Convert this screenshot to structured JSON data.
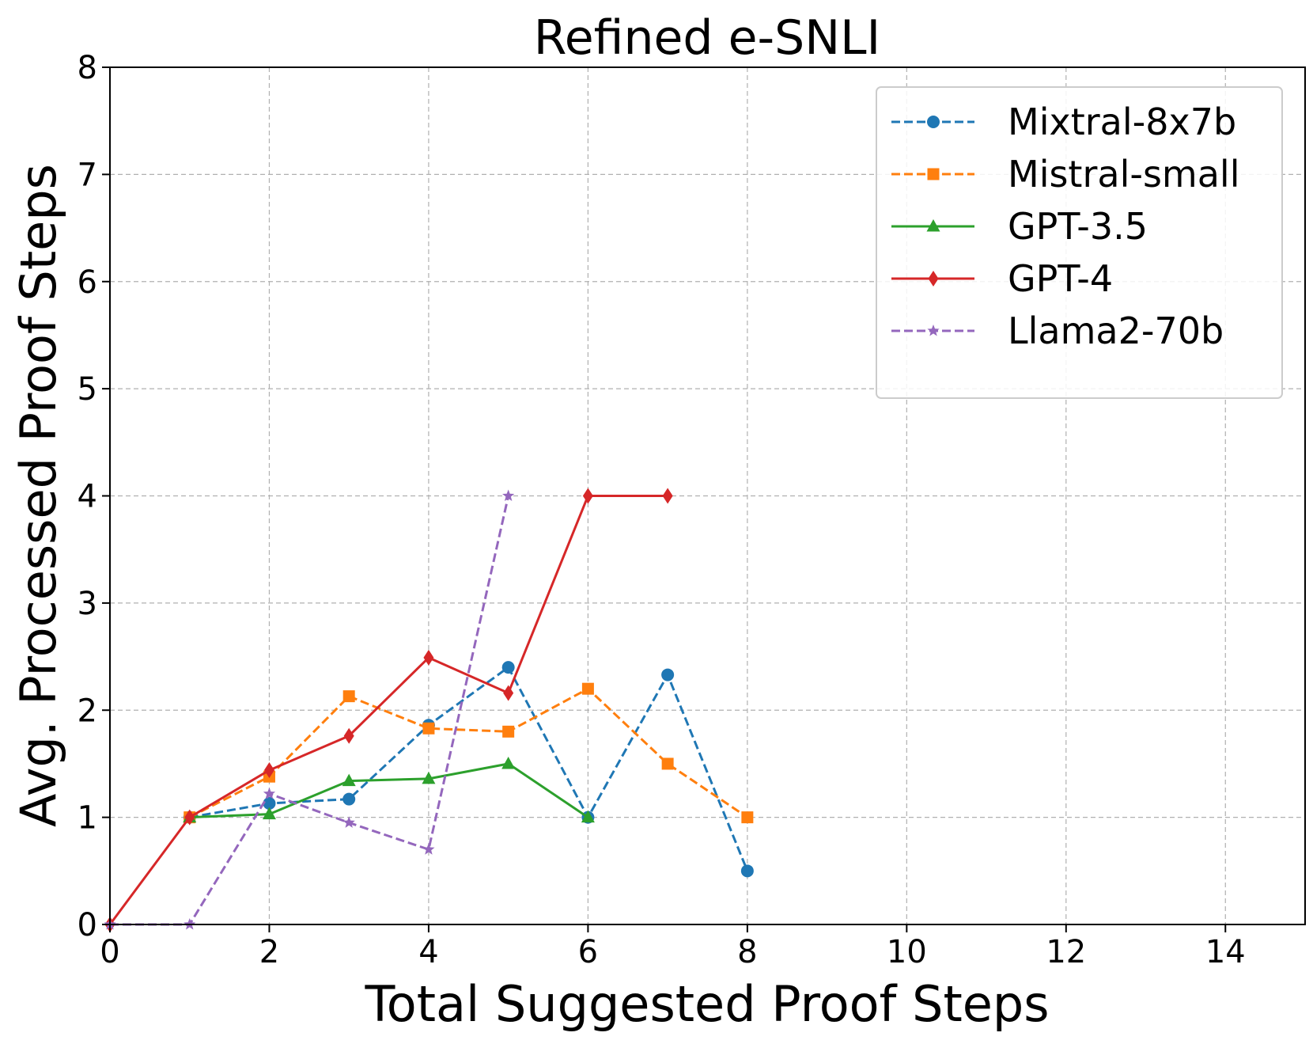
{
  "chart_data": {
    "type": "line",
    "title": "Refined e-SNLI",
    "xlabel": "Total Suggested Proof Steps",
    "ylabel": "Avg. Processed Proof Steps",
    "xlim": [
      0,
      15
    ],
    "ylim": [
      0,
      8
    ],
    "xticks": [
      0,
      2,
      4,
      6,
      8,
      10,
      12,
      14
    ],
    "yticks": [
      0,
      1,
      2,
      3,
      4,
      5,
      6,
      7,
      8
    ],
    "grid": true,
    "legend_position": "top-right",
    "series": [
      {
        "name": "Mixtral-8x7b",
        "color": "#1f77b4",
        "dash": "dashed",
        "marker": "circle",
        "x": [
          1,
          2,
          3,
          4,
          5,
          6,
          7,
          8
        ],
        "y": [
          1.0,
          1.13,
          1.17,
          1.86,
          2.4,
          1.0,
          2.33,
          0.5
        ]
      },
      {
        "name": "Mistral-small",
        "color": "#ff7f0e",
        "dash": "dashed",
        "marker": "square",
        "x": [
          1,
          2,
          3,
          4,
          5,
          6,
          7,
          8
        ],
        "y": [
          1.0,
          1.38,
          2.13,
          1.83,
          1.8,
          2.2,
          1.5,
          1.0
        ]
      },
      {
        "name": "GPT-3.5",
        "color": "#2ca02c",
        "dash": "solid",
        "marker": "triangle",
        "x": [
          1,
          2,
          3,
          4,
          5,
          6
        ],
        "y": [
          1.0,
          1.03,
          1.34,
          1.36,
          1.5,
          1.0
        ]
      },
      {
        "name": "GPT-4",
        "color": "#d62728",
        "dash": "solid",
        "marker": "diamond",
        "x": [
          0,
          1,
          2,
          3,
          4,
          5,
          6,
          7
        ],
        "y": [
          0.0,
          1.0,
          1.44,
          1.76,
          2.49,
          2.16,
          4.0,
          4.0
        ]
      },
      {
        "name": "Llama2-70b",
        "color": "#9467bd",
        "dash": "dashed",
        "marker": "star",
        "x": [
          0,
          1,
          2,
          3,
          4,
          5
        ],
        "y": [
          0.0,
          0.0,
          1.22,
          0.95,
          0.7,
          4.0
        ]
      }
    ]
  }
}
